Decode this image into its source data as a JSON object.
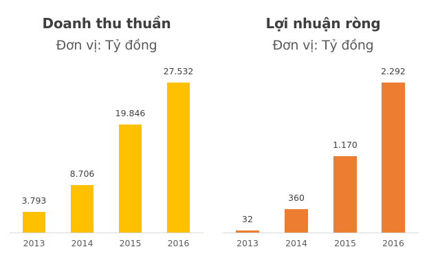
{
  "chart_data": [
    {
      "type": "bar",
      "title": "Doanh thu thuần",
      "subtitle": "Đơn vị: Tỷ đồng",
      "categories": [
        "2013",
        "2014",
        "2015",
        "2016"
      ],
      "values": [
        3793,
        8706,
        19846,
        27532
      ],
      "value_labels": [
        "3.793",
        "8.706",
        "19.846",
        "27.532"
      ],
      "color": "#FFC000",
      "xlabel": "",
      "ylabel": "",
      "grid": false,
      "legend": "none"
    },
    {
      "type": "bar",
      "title": "Lợi nhuận ròng",
      "subtitle": "Đơn vị: Tỷ đồng",
      "categories": [
        "2013",
        "2014",
        "2015",
        "2016"
      ],
      "values": [
        32,
        360,
        1170,
        2292
      ],
      "value_labels": [
        "32",
        "360",
        "1.170",
        "2.292"
      ],
      "color": "#ED7D31",
      "xlabel": "",
      "ylabel": "",
      "grid": false,
      "legend": "none"
    }
  ]
}
